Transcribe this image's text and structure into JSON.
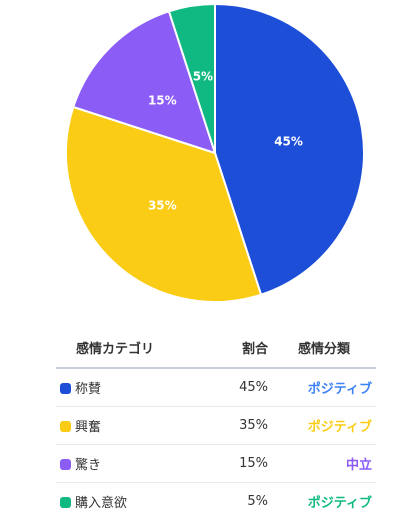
{
  "chart_data": {
    "type": "pie",
    "title": "",
    "slices": [
      {
        "label": "称賛",
        "value": 45,
        "value_label": "45%",
        "color": "#1d4ed8"
      },
      {
        "label": "興奮",
        "value": 35,
        "value_label": "35%",
        "color": "#facc15"
      },
      {
        "label": "驚き",
        "value": 15,
        "value_label": "15%",
        "color": "#8b5cf6"
      },
      {
        "label": "購入意欲",
        "value": 5,
        "value_label": "5%",
        "color": "#10b981"
      }
    ],
    "start_angle_deg": 0,
    "direction": "clockwise"
  },
  "table": {
    "headers": {
      "category": "感情カテゴリ",
      "ratio": "割合",
      "classification": "感情分類"
    },
    "rows": [
      {
        "name": "称賛",
        "ratio": "45%",
        "classification": "ポジティブ",
        "swatch": "#1d4ed8",
        "class_color": "#3b82f6"
      },
      {
        "name": "興奮",
        "ratio": "35%",
        "classification": "ポジティブ",
        "swatch": "#facc15",
        "class_color": "#facc15"
      },
      {
        "name": "驚き",
        "ratio": "15%",
        "classification": "中立",
        "swatch": "#8b5cf6",
        "class_color": "#8b5cf6"
      },
      {
        "name": "購入意欲",
        "ratio": "5%",
        "classification": "ポジティブ",
        "swatch": "#10b981",
        "class_color": "#10b981"
      }
    ]
  }
}
